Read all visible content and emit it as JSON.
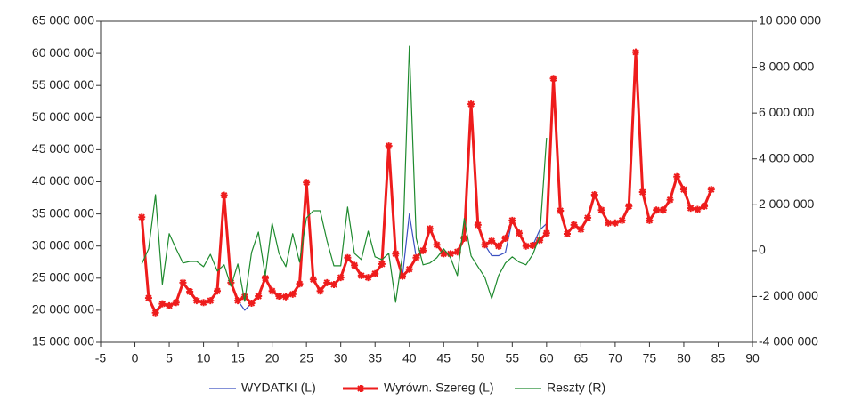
{
  "chart_data": {
    "type": "line",
    "x": [
      1,
      2,
      3,
      4,
      5,
      6,
      7,
      8,
      9,
      10,
      11,
      12,
      13,
      14,
      15,
      16,
      17,
      18,
      19,
      20,
      21,
      22,
      23,
      24,
      25,
      26,
      27,
      28,
      29,
      30,
      31,
      32,
      33,
      34,
      35,
      36,
      37,
      38,
      39,
      40,
      41,
      42,
      43,
      44,
      45,
      46,
      47,
      48,
      49,
      50,
      51,
      52,
      53,
      54,
      55,
      56,
      57,
      58,
      59,
      60,
      61,
      62,
      63,
      64,
      65,
      66,
      67,
      68,
      69,
      70,
      71,
      72,
      73,
      74,
      75,
      76,
      77,
      78,
      79,
      80,
      81,
      82,
      83,
      84
    ],
    "series": [
      {
        "name": "WYDATKI (L)",
        "color": "#3a4fc0",
        "axis": "y",
        "marker": false,
        "values": [
          34500000,
          21900000,
          20000000,
          21000000,
          20700000,
          21200000,
          24300000,
          22900000,
          21500000,
          21200000,
          21500000,
          23000000,
          37900000,
          24300000,
          21500000,
          20000000,
          21100000,
          22200000,
          25000000,
          23000000,
          22200000,
          22100000,
          22500000,
          24100000,
          39900000,
          24800000,
          23000000,
          24300000,
          24000000,
          25100000,
          28200000,
          27000000,
          25400000,
          25100000,
          25700000,
          27200000,
          45600000,
          28800000,
          25300000,
          35000000,
          28200000,
          29300000,
          32700000,
          30200000,
          28800000,
          28800000,
          29100000,
          31200000,
          52100000,
          33300000,
          30200000,
          28500000,
          28500000,
          29000000,
          34000000,
          32000000,
          30000000,
          30100000,
          32500000,
          33500000,
          null,
          null,
          null,
          null,
          null,
          null,
          null,
          null,
          null,
          null,
          null,
          null,
          null,
          null,
          null,
          null,
          null,
          null,
          null,
          null,
          null,
          null,
          null,
          null
        ]
      },
      {
        "name": "Wyrówn. Szereg (L)",
        "color": "#ee1c1c",
        "axis": "y",
        "marker": true,
        "values": [
          34500000,
          21900000,
          19600000,
          21000000,
          20700000,
          21200000,
          24300000,
          22900000,
          21500000,
          21200000,
          21500000,
          23000000,
          37900000,
          24300000,
          21500000,
          22100000,
          21100000,
          22200000,
          25000000,
          23000000,
          22200000,
          22100000,
          22500000,
          24100000,
          39900000,
          24800000,
          23000000,
          24300000,
          24000000,
          25100000,
          28200000,
          27000000,
          25400000,
          25100000,
          25700000,
          27200000,
          45600000,
          28800000,
          25300000,
          26400000,
          28200000,
          29300000,
          32700000,
          30200000,
          28800000,
          28800000,
          29100000,
          31200000,
          52100000,
          33300000,
          30200000,
          30800000,
          30000000,
          31200000,
          34000000,
          32000000,
          30000000,
          30100000,
          30900000,
          32000000,
          56100000,
          35500000,
          31900000,
          33300000,
          32600000,
          34400000,
          38000000,
          35600000,
          33600000,
          33600000,
          34000000,
          36200000,
          60200000,
          38400000,
          34000000,
          35600000,
          35600000,
          37200000,
          40800000,
          38800000,
          35900000,
          35700000,
          36200000,
          38800000
        ]
      },
      {
        "name": "Reszty (R)",
        "color": "#1e8a2e",
        "axis": "y2",
        "marker": false,
        "values": [
          -580000,
          80000,
          2440000,
          -1470000,
          740000,
          80000,
          -540000,
          -470000,
          -470000,
          -700000,
          -160000,
          -890000,
          -620000,
          -1550000,
          -580000,
          -2210000,
          -80000,
          810000,
          -1090000,
          1200000,
          -120000,
          -700000,
          740000,
          -500000,
          1430000,
          1740000,
          1740000,
          430000,
          -660000,
          -660000,
          1900000,
          -120000,
          -390000,
          850000,
          -270000,
          -390000,
          -120000,
          -2250000,
          -190000,
          8910000,
          540000,
          -620000,
          -540000,
          -310000,
          80000,
          -310000,
          -1090000,
          1400000,
          -230000,
          -700000,
          -1160000,
          -2090000,
          -1090000,
          -540000,
          -270000,
          -500000,
          -620000,
          -160000,
          620000,
          4920000,
          null,
          null,
          null,
          null,
          null,
          null,
          null,
          null,
          null,
          null,
          null,
          null,
          null,
          null,
          null,
          null,
          null,
          null,
          null,
          null,
          null,
          null,
          null,
          null
        ]
      }
    ],
    "xlim": [
      -5,
      90
    ],
    "xticks": [
      -5,
      0,
      5,
      10,
      15,
      20,
      25,
      30,
      35,
      40,
      45,
      50,
      55,
      60,
      65,
      70,
      75,
      80,
      85,
      90
    ],
    "ylim": [
      15000000,
      65000000
    ],
    "yticks": [
      {
        "value": 15000000,
        "label": "15 000 000"
      },
      {
        "value": 20000000,
        "label": "20 000 000"
      },
      {
        "value": 25000000,
        "label": "25 000 000"
      },
      {
        "value": 30000000,
        "label": "30 000 000"
      },
      {
        "value": 35000000,
        "label": "35 000 000"
      },
      {
        "value": 40000000,
        "label": "40 000 000"
      },
      {
        "value": 45000000,
        "label": "45 000 000"
      },
      {
        "value": 50000000,
        "label": "50 000 000"
      },
      {
        "value": 55000000,
        "label": "55 000 000"
      },
      {
        "value": 60000000,
        "label": "60 000 000"
      },
      {
        "value": 65000000,
        "label": "65 000 000"
      }
    ],
    "y2lim": [
      -4000000,
      10000000
    ],
    "y2ticks": [
      {
        "value": -4000000,
        "label": "-4 000 000"
      },
      {
        "value": -2000000,
        "label": "-2 000 000"
      },
      0,
      {
        "value": 2000000,
        "label": "2 000 000"
      },
      {
        "value": 4000000,
        "label": "4 000 000"
      },
      {
        "value": 6000000,
        "label": "6 000 000"
      },
      {
        "value": 8000000,
        "label": "8 000 000"
      },
      {
        "value": 10000000,
        "label": "10 000 000"
      }
    ],
    "grid": false,
    "legend": "bottom"
  }
}
